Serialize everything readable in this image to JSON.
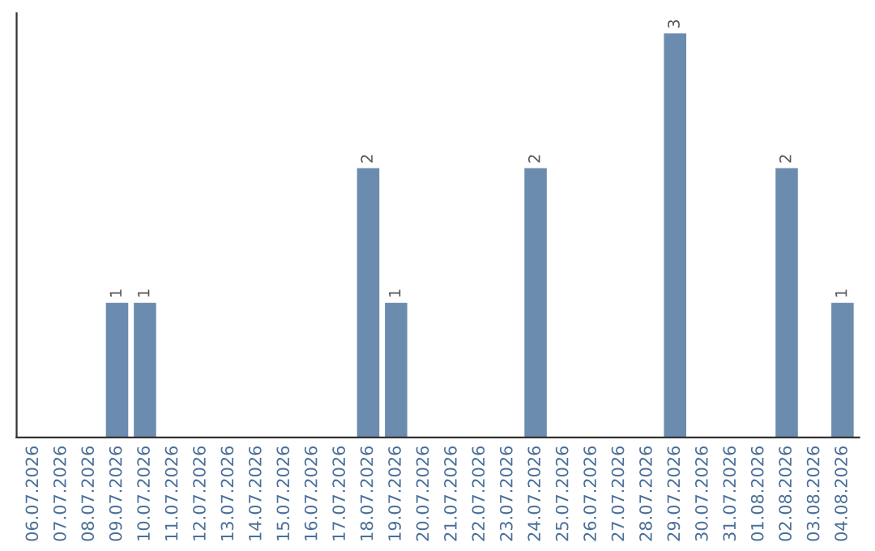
{
  "chart_data": {
    "type": "bar",
    "categories": [
      "06.07.2026",
      "07.07.2026",
      "08.07.2026",
      "09.07.2026",
      "10.07.2026",
      "11.07.2026",
      "12.07.2026",
      "13.07.2026",
      "14.07.2026",
      "15.07.2026",
      "16.07.2026",
      "17.07.2026",
      "18.07.2026",
      "19.07.2026",
      "20.07.2026",
      "21.07.2026",
      "22.07.2026",
      "23.07.2026",
      "24.07.2026",
      "25.07.2026",
      "26.07.2026",
      "27.07.2026",
      "28.07.2026",
      "29.07.2026",
      "30.07.2026",
      "31.07.2026",
      "01.08.2026",
      "02.08.2026",
      "03.08.2026",
      "04.08.2026"
    ],
    "values": [
      0,
      0,
      0,
      1,
      1,
      0,
      0,
      0,
      0,
      0,
      0,
      0,
      2,
      1,
      0,
      0,
      0,
      0,
      2,
      0,
      0,
      0,
      0,
      3,
      0,
      0,
      0,
      2,
      0,
      1
    ],
    "value_labels": [
      null,
      null,
      null,
      "1",
      "1",
      null,
      null,
      null,
      null,
      null,
      null,
      null,
      "2",
      "1",
      null,
      null,
      null,
      null,
      "2",
      null,
      null,
      null,
      null,
      "3",
      null,
      null,
      null,
      "2",
      null,
      "1"
    ],
    "color": "#6b8caf",
    "grid": false,
    "tick_labels": "x"
  }
}
